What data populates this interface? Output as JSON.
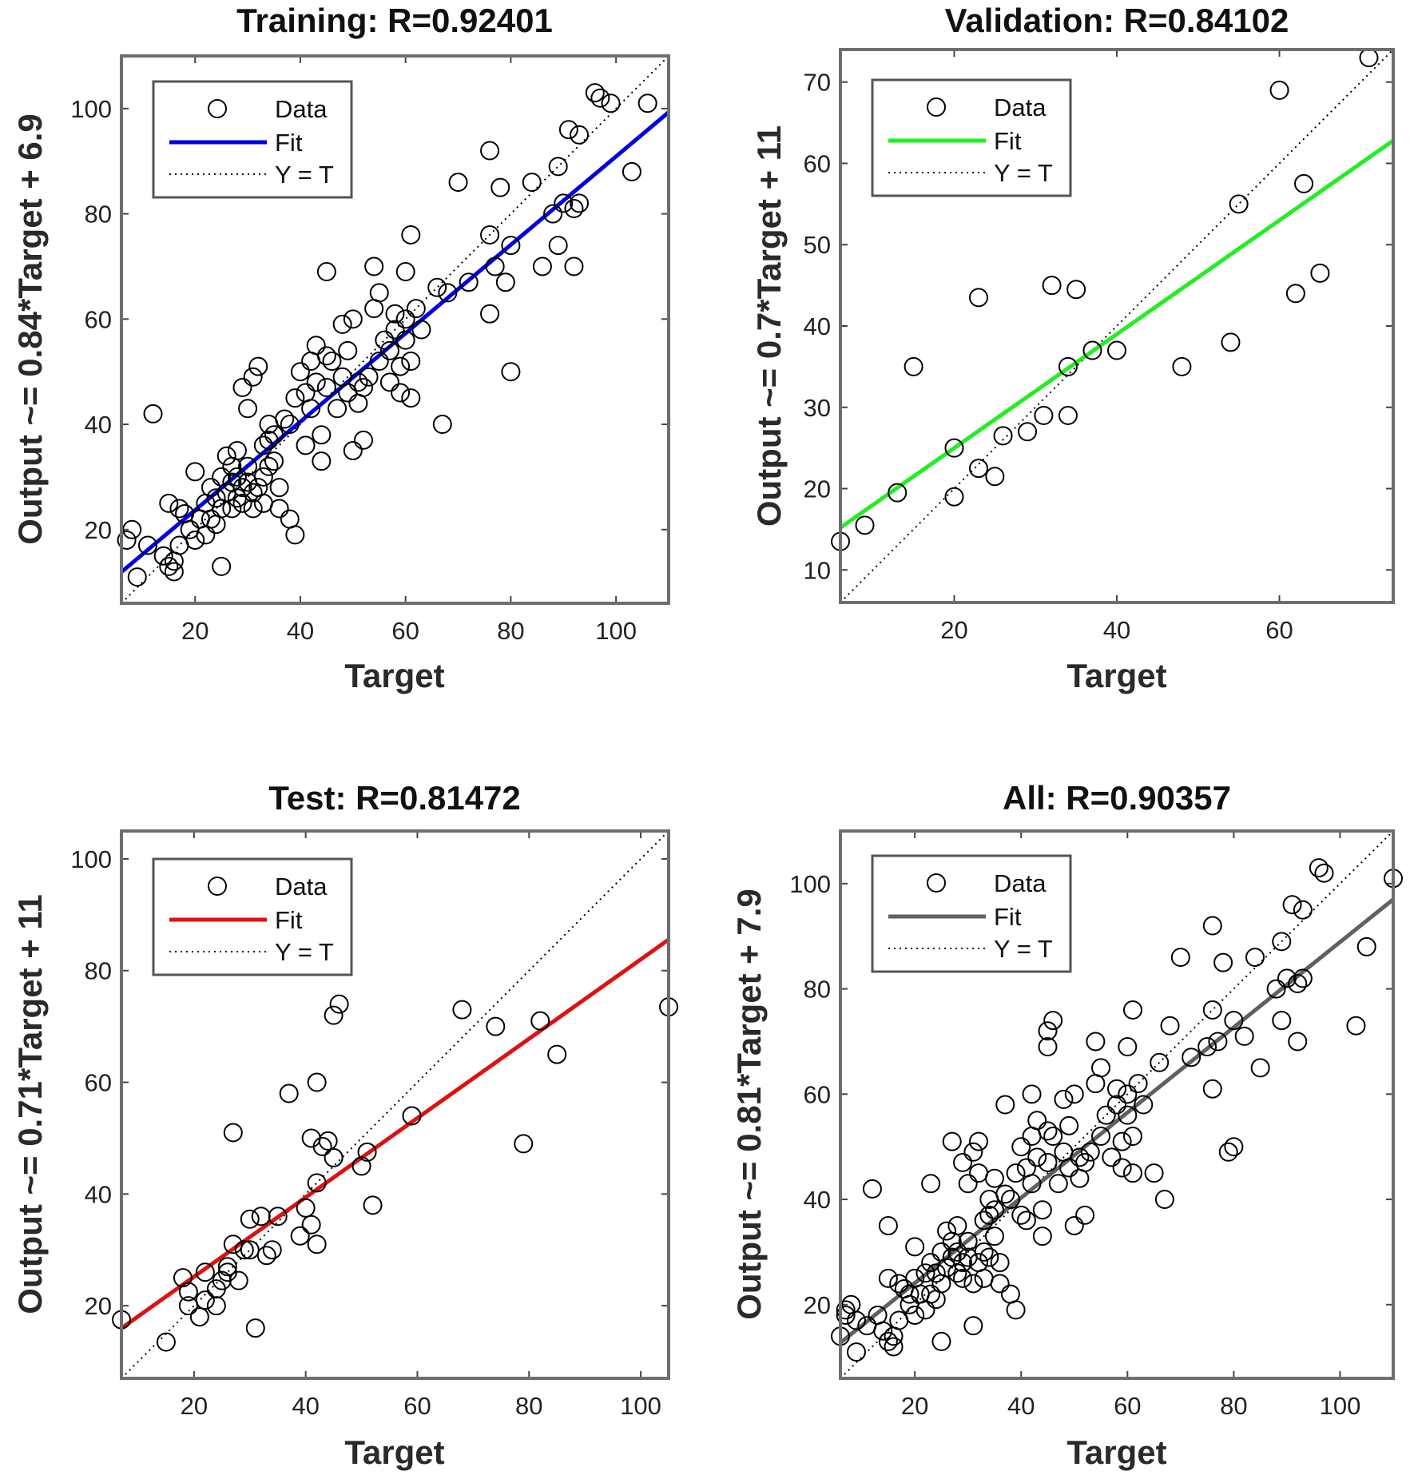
{
  "chart_data": [
    {
      "type": "scatter",
      "title": "Training: R=0.92401",
      "xlabel": "Target",
      "ylabel": "Output ~= 0.84*Target + 6.9",
      "xlim": [
        6,
        110
      ],
      "ylim": [
        6,
        110
      ],
      "xticks": [
        20,
        40,
        60,
        80,
        100
      ],
      "yticks": [
        20,
        40,
        60,
        80,
        100
      ],
      "fit": {
        "slope": 0.84,
        "intercept": 6.9,
        "color": "#0000e0"
      },
      "legend": {
        "position": "top-left",
        "data": "Data",
        "fit": "Fit",
        "identity": "Y = T"
      },
      "points": [
        [
          7,
          18
        ],
        [
          8,
          20
        ],
        [
          9,
          11
        ],
        [
          11,
          17
        ],
        [
          12,
          42
        ],
        [
          14,
          15
        ],
        [
          15,
          13
        ],
        [
          15,
          25
        ],
        [
          16,
          12
        ],
        [
          16,
          14
        ],
        [
          17,
          17
        ],
        [
          17,
          24
        ],
        [
          18,
          23
        ],
        [
          19,
          20
        ],
        [
          20,
          31
        ],
        [
          20,
          18
        ],
        [
          21,
          22
        ],
        [
          22,
          25
        ],
        [
          22,
          19
        ],
        [
          23,
          28
        ],
        [
          23,
          22
        ],
        [
          24,
          26
        ],
        [
          24,
          21
        ],
        [
          25,
          13
        ],
        [
          25,
          30
        ],
        [
          25,
          24
        ],
        [
          26,
          34
        ],
        [
          26,
          27
        ],
        [
          27,
          29
        ],
        [
          27,
          24
        ],
        [
          27,
          32
        ],
        [
          28,
          26
        ],
        [
          28,
          30
        ],
        [
          28,
          35
        ],
        [
          29,
          28
        ],
        [
          29,
          25
        ],
        [
          29,
          47
        ],
        [
          30,
          32
        ],
        [
          30,
          29
        ],
        [
          30,
          43
        ],
        [
          31,
          49
        ],
        [
          31,
          24
        ],
        [
          31,
          27
        ],
        [
          32,
          51
        ],
        [
          32,
          28
        ],
        [
          33,
          36
        ],
        [
          33,
          30
        ],
        [
          33,
          25
        ],
        [
          34,
          40
        ],
        [
          34,
          37
        ],
        [
          34,
          32
        ],
        [
          35,
          38
        ],
        [
          35,
          33
        ],
        [
          36,
          28
        ],
        [
          36,
          24
        ],
        [
          37,
          41
        ],
        [
          38,
          40
        ],
        [
          38,
          22
        ],
        [
          39,
          45
        ],
        [
          39,
          19
        ],
        [
          40,
          50
        ],
        [
          41,
          36
        ],
        [
          41,
          46
        ],
        [
          42,
          52
        ],
        [
          42,
          43
        ],
        [
          43,
          55
        ],
        [
          43,
          48
        ],
        [
          44,
          38
        ],
        [
          44,
          33
        ],
        [
          45,
          69
        ],
        [
          45,
          53
        ],
        [
          45,
          47
        ],
        [
          46,
          52
        ],
        [
          47,
          43
        ],
        [
          48,
          59
        ],
        [
          48,
          49
        ],
        [
          49,
          46
        ],
        [
          49,
          54
        ],
        [
          50,
          35
        ],
        [
          50,
          60
        ],
        [
          51,
          44
        ],
        [
          51,
          48
        ],
        [
          52,
          37
        ],
        [
          52,
          47
        ],
        [
          53,
          49
        ],
        [
          54,
          70
        ],
        [
          54,
          62
        ],
        [
          55,
          65
        ],
        [
          55,
          52
        ],
        [
          56,
          56
        ],
        [
          57,
          48
        ],
        [
          57,
          54
        ],
        [
          58,
          58
        ],
        [
          58,
          61
        ],
        [
          59,
          51
        ],
        [
          59,
          46
        ],
        [
          60,
          56
        ],
        [
          60,
          69
        ],
        [
          60,
          60
        ],
        [
          61,
          76
        ],
        [
          61,
          52
        ],
        [
          61,
          45
        ],
        [
          62,
          62
        ],
        [
          63,
          58
        ],
        [
          66,
          66
        ],
        [
          67,
          40
        ],
        [
          68,
          65
        ],
        [
          70,
          86
        ],
        [
          72,
          67
        ],
        [
          76,
          61
        ],
        [
          76,
          76
        ],
        [
          76,
          92
        ],
        [
          77,
          70
        ],
        [
          78,
          85
        ],
        [
          79,
          67
        ],
        [
          80,
          50
        ],
        [
          80,
          74
        ],
        [
          84,
          86
        ],
        [
          86,
          70
        ],
        [
          88,
          80
        ],
        [
          89,
          74
        ],
        [
          89,
          89
        ],
        [
          90,
          82
        ],
        [
          91,
          96
        ],
        [
          92,
          81
        ],
        [
          92,
          70
        ],
        [
          93,
          95
        ],
        [
          93,
          82
        ],
        [
          96,
          103
        ],
        [
          97,
          102
        ],
        [
          99,
          101
        ],
        [
          103,
          88
        ],
        [
          106,
          101
        ]
      ]
    },
    {
      "type": "scatter",
      "title": "Validation: R=0.84102",
      "xlabel": "Target",
      "ylabel": "Output ~= 0.7*Target + 11",
      "xlim": [
        6,
        74
      ],
      "ylim": [
        6,
        74
      ],
      "xticks": [
        20,
        40,
        60
      ],
      "yticks": [
        10,
        20,
        30,
        40,
        50,
        60,
        70
      ],
      "fit": {
        "slope": 0.7,
        "intercept": 11,
        "color": "#22ee22"
      },
      "legend": {
        "position": "top-left",
        "data": "Data",
        "fit": "Fit",
        "identity": "Y = T"
      },
      "points": [
        [
          6,
          13.5
        ],
        [
          9,
          15.5
        ],
        [
          13,
          19.5
        ],
        [
          15,
          35
        ],
        [
          20,
          19
        ],
        [
          20,
          25
        ],
        [
          23,
          43.5
        ],
        [
          23,
          22.5
        ],
        [
          25,
          21.5
        ],
        [
          26,
          26.5
        ],
        [
          29,
          27
        ],
        [
          31,
          29
        ],
        [
          32,
          45
        ],
        [
          34,
          35
        ],
        [
          34,
          29
        ],
        [
          35,
          44.5
        ],
        [
          37,
          37
        ],
        [
          40,
          37
        ],
        [
          48,
          35
        ],
        [
          54,
          38
        ],
        [
          55,
          55
        ],
        [
          60,
          69
        ],
        [
          62,
          44
        ],
        [
          63,
          57.5
        ],
        [
          65,
          46.5
        ],
        [
          71,
          73
        ]
      ]
    },
    {
      "type": "scatter",
      "title": "Test: R=0.81472",
      "xlabel": "Target",
      "ylabel": "Output ~= 0.71*Target + 11",
      "xlim": [
        7,
        105
      ],
      "ylim": [
        7,
        105
      ],
      "xticks": [
        20,
        40,
        60,
        80,
        100
      ],
      "yticks": [
        20,
        40,
        60,
        80,
        100
      ],
      "fit": {
        "slope": 0.71,
        "intercept": 11,
        "color": "#e01010"
      },
      "legend": {
        "position": "top-left",
        "data": "Data",
        "fit": "Fit",
        "identity": "Y = T"
      },
      "points": [
        [
          7,
          17.5
        ],
        [
          15,
          13.5
        ],
        [
          18,
          25
        ],
        [
          19,
          20
        ],
        [
          19,
          22.5
        ],
        [
          21,
          18
        ],
        [
          22,
          26
        ],
        [
          22,
          21
        ],
        [
          24,
          23
        ],
        [
          24,
          20
        ],
        [
          25,
          24.5
        ],
        [
          26,
          26
        ],
        [
          26,
          27
        ],
        [
          27,
          51
        ],
        [
          27,
          31
        ],
        [
          28,
          24.5
        ],
        [
          29,
          30
        ],
        [
          30,
          35.5
        ],
        [
          30,
          30
        ],
        [
          31,
          16
        ],
        [
          32,
          36
        ],
        [
          33,
          29
        ],
        [
          34,
          30
        ],
        [
          35,
          36
        ],
        [
          37,
          58
        ],
        [
          39,
          32.5
        ],
        [
          40,
          37.5
        ],
        [
          41,
          34.5
        ],
        [
          41,
          50
        ],
        [
          42,
          42
        ],
        [
          42,
          31
        ],
        [
          42,
          60
        ],
        [
          43,
          48.5
        ],
        [
          44,
          49.5
        ],
        [
          45,
          72
        ],
        [
          45,
          46.5
        ],
        [
          46,
          74
        ],
        [
          50,
          45
        ],
        [
          51,
          47.5
        ],
        [
          52,
          38
        ],
        [
          59,
          54
        ],
        [
          68,
          73
        ],
        [
          74,
          70
        ],
        [
          79,
          49
        ],
        [
          82,
          71
        ],
        [
          85,
          65
        ],
        [
          105,
          73.5
        ]
      ]
    },
    {
      "type": "scatter",
      "title": "All: R=0.90357",
      "xlabel": "Target",
      "ylabel": "Output ~= 0.81*Target + 7.9",
      "xlim": [
        6,
        110
      ],
      "ylim": [
        6,
        110
      ],
      "xticks": [
        20,
        40,
        60,
        80,
        100
      ],
      "yticks": [
        20,
        40,
        60,
        80,
        100
      ],
      "fit": {
        "slope": 0.81,
        "intercept": 7.9,
        "color": "#606060"
      },
      "legend": {
        "position": "top-left",
        "data": "Data",
        "fit": "Fit",
        "identity": "Y = T"
      },
      "points": [
        [
          6,
          14
        ],
        [
          7,
          18
        ],
        [
          7,
          19
        ],
        [
          8,
          20
        ],
        [
          9,
          11
        ],
        [
          9,
          17
        ],
        [
          11,
          16
        ],
        [
          12,
          42
        ],
        [
          13,
          18
        ],
        [
          14,
          15
        ],
        [
          15,
          13
        ],
        [
          15,
          25
        ],
        [
          15,
          35
        ],
        [
          16,
          12
        ],
        [
          16,
          14
        ],
        [
          17,
          17
        ],
        [
          17,
          24
        ],
        [
          18,
          23
        ],
        [
          19,
          20
        ],
        [
          19,
          22
        ],
        [
          20,
          31
        ],
        [
          20,
          18
        ],
        [
          20,
          25
        ],
        [
          21,
          22
        ],
        [
          22,
          19
        ],
        [
          22,
          26
        ],
        [
          23,
          43
        ],
        [
          23,
          28
        ],
        [
          23,
          22
        ],
        [
          24,
          26
        ],
        [
          24,
          21
        ],
        [
          25,
          13
        ],
        [
          25,
          30
        ],
        [
          25,
          24
        ],
        [
          26,
          34
        ],
        [
          26,
          27
        ],
        [
          27,
          29
        ],
        [
          27,
          51
        ],
        [
          27,
          32
        ],
        [
          28,
          26
        ],
        [
          28,
          30
        ],
        [
          28,
          35
        ],
        [
          29,
          28
        ],
        [
          29,
          25
        ],
        [
          29,
          47
        ],
        [
          30,
          32
        ],
        [
          30,
          29
        ],
        [
          30,
          43
        ],
        [
          31,
          49
        ],
        [
          31,
          24
        ],
        [
          31,
          16
        ],
        [
          32,
          51
        ],
        [
          32,
          28
        ],
        [
          32,
          45
        ],
        [
          33,
          36
        ],
        [
          33,
          30
        ],
        [
          33,
          25
        ],
        [
          34,
          40
        ],
        [
          34,
          37
        ],
        [
          34,
          29
        ],
        [
          35,
          38
        ],
        [
          35,
          33
        ],
        [
          35,
          44
        ],
        [
          36,
          28
        ],
        [
          36,
          24
        ],
        [
          37,
          41
        ],
        [
          37,
          58
        ],
        [
          38,
          40
        ],
        [
          38,
          22
        ],
        [
          39,
          45
        ],
        [
          39,
          19
        ],
        [
          40,
          50
        ],
        [
          40,
          37
        ],
        [
          41,
          36
        ],
        [
          41,
          46
        ],
        [
          42,
          52
        ],
        [
          42,
          43
        ],
        [
          42,
          60
        ],
        [
          43,
          55
        ],
        [
          43,
          48
        ],
        [
          44,
          38
        ],
        [
          44,
          33
        ],
        [
          45,
          69
        ],
        [
          45,
          53
        ],
        [
          45,
          72
        ],
        [
          45,
          47
        ],
        [
          46,
          52
        ],
        [
          46,
          74
        ],
        [
          47,
          43
        ],
        [
          48,
          59
        ],
        [
          48,
          49
        ],
        [
          49,
          46
        ],
        [
          49,
          54
        ],
        [
          50,
          35
        ],
        [
          50,
          60
        ],
        [
          51,
          44
        ],
        [
          51,
          48
        ],
        [
          52,
          37
        ],
        [
          52,
          47
        ],
        [
          53,
          49
        ],
        [
          54,
          70
        ],
        [
          54,
          62
        ],
        [
          55,
          65
        ],
        [
          55,
          52
        ],
        [
          56,
          56
        ],
        [
          57,
          48
        ],
        [
          58,
          58
        ],
        [
          58,
          61
        ],
        [
          59,
          51
        ],
        [
          59,
          46
        ],
        [
          60,
          56
        ],
        [
          60,
          69
        ],
        [
          60,
          60
        ],
        [
          61,
          76
        ],
        [
          61,
          52
        ],
        [
          61,
          45
        ],
        [
          62,
          62
        ],
        [
          63,
          58
        ],
        [
          65,
          45
        ],
        [
          66,
          66
        ],
        [
          67,
          40
        ],
        [
          68,
          73
        ],
        [
          70,
          86
        ],
        [
          72,
          67
        ],
        [
          75,
          69
        ],
        [
          76,
          61
        ],
        [
          76,
          76
        ],
        [
          76,
          92
        ],
        [
          77,
          70
        ],
        [
          78,
          85
        ],
        [
          79,
          49
        ],
        [
          80,
          50
        ],
        [
          80,
          74
        ],
        [
          82,
          71
        ],
        [
          84,
          86
        ],
        [
          85,
          65
        ],
        [
          88,
          80
        ],
        [
          89,
          74
        ],
        [
          89,
          89
        ],
        [
          90,
          82
        ],
        [
          91,
          96
        ],
        [
          92,
          81
        ],
        [
          92,
          70
        ],
        [
          93,
          95
        ],
        [
          93,
          82
        ],
        [
          96,
          103
        ],
        [
          97,
          102
        ],
        [
          103,
          73
        ],
        [
          105,
          88
        ],
        [
          110,
          101
        ]
      ]
    }
  ]
}
